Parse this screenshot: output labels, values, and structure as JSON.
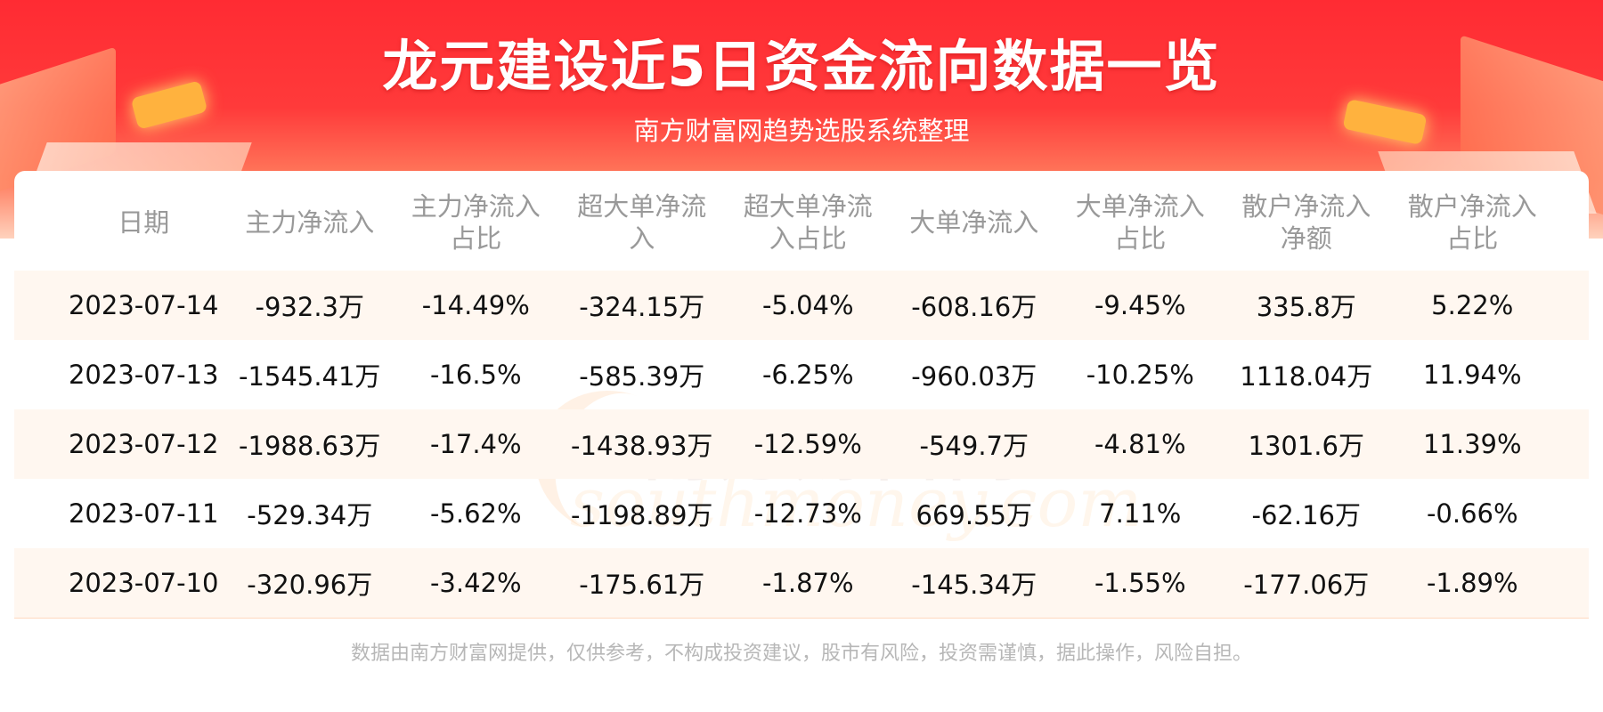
{
  "title": "龙元建设近5日资金流向数据一览",
  "subtitle": "南方财富网趋势选股系统整理",
  "watermark": {
    "cn": "南方财富网",
    "en": "southmoney.com"
  },
  "footer": "数据由南方财富网提供，仅供参考，不构成投资建议，股市有风险，投资需谨慎，据此操作，风险自担。",
  "colors": {
    "header_red": "#ff2b33",
    "row_alt": "#fff7f0",
    "header_text": "#999999"
  },
  "chart_data": {
    "type": "table",
    "columns": [
      "日期",
      "主力净流入",
      "主力净流入占比",
      "超大单净流入",
      "超大单净流入占比",
      "大单净流入",
      "大单净流入占比",
      "散户净流入净额",
      "散户净流入占比"
    ],
    "header_lines": [
      [
        "日期"
      ],
      [
        "主力净流入"
      ],
      [
        "主力净流入",
        "占比"
      ],
      [
        "超大单净流",
        "入"
      ],
      [
        "超大单净流",
        "入占比"
      ],
      [
        "大单净流入"
      ],
      [
        "大单净流入",
        "占比"
      ],
      [
        "散户净流入",
        "净额"
      ],
      [
        "散户净流入",
        "占比"
      ]
    ],
    "rows": [
      [
        "2023-07-14",
        "-932.3万",
        "-14.49%",
        "-324.15万",
        "-5.04%",
        "-608.16万",
        "-9.45%",
        "335.8万",
        "5.22%"
      ],
      [
        "2023-07-13",
        "-1545.41万",
        "-16.5%",
        "-585.39万",
        "-6.25%",
        "-960.03万",
        "-10.25%",
        "1118.04万",
        "11.94%"
      ],
      [
        "2023-07-12",
        "-1988.63万",
        "-17.4%",
        "-1438.93万",
        "-12.59%",
        "-549.7万",
        "-4.81%",
        "1301.6万",
        "11.39%"
      ],
      [
        "2023-07-11",
        "-529.34万",
        "-5.62%",
        "-1198.89万",
        "-12.73%",
        "669.55万",
        "7.11%",
        "-62.16万",
        "-0.66%"
      ],
      [
        "2023-07-10",
        "-320.96万",
        "-3.42%",
        "-175.61万",
        "-1.87%",
        "-145.34万",
        "-1.55%",
        "-177.06万",
        "-1.89%"
      ]
    ]
  }
}
